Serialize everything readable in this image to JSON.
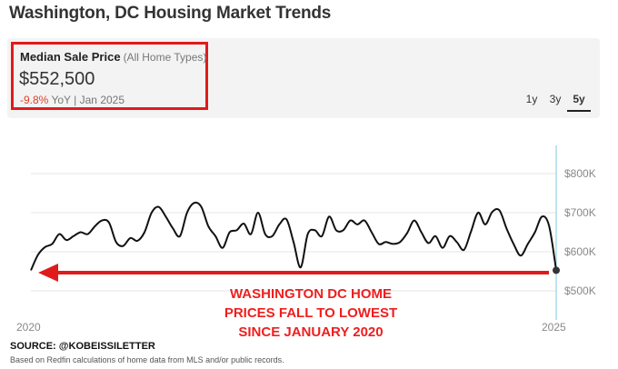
{
  "page": {
    "title": "Washington, DC Housing Market Trends",
    "source": "SOURCE: @KOBEISSILETTER",
    "footnote": "Based on Redfin calculations of home data from MLS and/or public records."
  },
  "metric": {
    "label": "Median Sale Price",
    "sublabel": "(All Home Types)",
    "value": "$552,500",
    "change": "-9.8%",
    "change_suffix": "YoY | Jan 2025"
  },
  "range_tabs": [
    {
      "label": "1y",
      "active": false
    },
    {
      "label": "3y",
      "active": false
    },
    {
      "label": "5y",
      "active": true
    }
  ],
  "callout": {
    "lines": [
      "WASHINGTON DC HOME",
      "PRICES FALL TO LOWEST",
      "SINCE JANUARY 2020"
    ]
  },
  "colors": {
    "line": "#111111",
    "arrow": "#e01b1b",
    "cursor": "#a8dcec",
    "grid": "#e6e6e6",
    "highlight": "#e01b1b"
  },
  "chart_data": {
    "type": "line",
    "title": "",
    "xlabel": "",
    "ylabel": "",
    "x_start": 2020.0,
    "x_end": 2025.0,
    "x_ticks": [
      "2020",
      "2025"
    ],
    "y_ticks": [
      "$500K",
      "$600K",
      "$700K",
      "$800K"
    ],
    "ylim": [
      480000,
      840000
    ],
    "grid": true,
    "series": [
      {
        "values": [
          552500,
          592000,
          612000,
          620000,
          645000,
          630000,
          640000,
          650000,
          645000,
          665000,
          680000,
          675000,
          625000,
          615000,
          635000,
          628000,
          650000,
          700000,
          715000,
          690000,
          660000,
          640000,
          700000,
          725000,
          715000,
          665000,
          640000,
          610000,
          650000,
          655000,
          672000,
          645000,
          700000,
          645000,
          640000,
          670000,
          683000,
          625000,
          560000,
          645000,
          655000,
          640000,
          690000,
          655000,
          655000,
          680000,
          670000,
          680000,
          650000,
          620000,
          625000,
          620000,
          625000,
          648000,
          680000,
          650000,
          622000,
          640000,
          610000,
          640000,
          625000,
          605000,
          652000,
          700000,
          670000,
          702000,
          706000,
          660000,
          620000,
          590000,
          620000,
          650000,
          690000,
          666000,
          552500
        ]
      }
    ]
  }
}
